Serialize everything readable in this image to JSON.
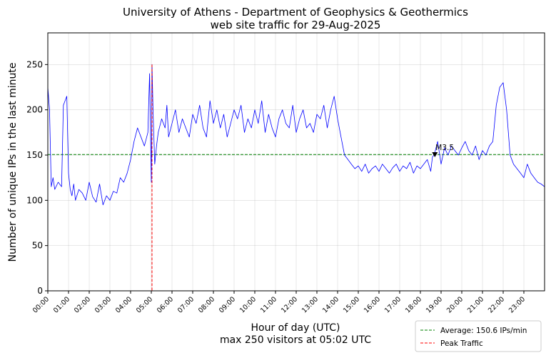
{
  "chart_data": {
    "type": "line",
    "title_line1": "University of Athens - Department of Geophysics & Geothermics",
    "title_line2": "web site traffic for 29-Aug-2025",
    "xlabel": "Hour of day (UTC)",
    "xlabel_sub": "max 250 visitors at 05:02 UTC",
    "ylabel": "Number of unique IPs in the last minute",
    "xlim": [
      0,
      1440
    ],
    "ylim": [
      0,
      285
    ],
    "yticks": [
      0,
      50,
      100,
      150,
      200,
      250
    ],
    "xticks": [
      "00:00",
      "01:00",
      "02:00",
      "03:00",
      "04:00",
      "05:00",
      "06:00",
      "07:00",
      "08:00",
      "09:00",
      "10:00",
      "11:00",
      "12:00",
      "13:00",
      "14:00",
      "15:00",
      "16:00",
      "17:00",
      "18:00",
      "19:00",
      "20:00",
      "21:00",
      "22:00",
      "23:00"
    ],
    "grid": true,
    "legend_position": "lower-right",
    "series": [
      {
        "role": "traffic",
        "color": "#0000ff",
        "x_minutes": [
          0,
          5,
          10,
          15,
          20,
          30,
          40,
          45,
          50,
          55,
          60,
          65,
          70,
          75,
          80,
          90,
          100,
          110,
          120,
          130,
          140,
          150,
          160,
          170,
          180,
          190,
          200,
          210,
          220,
          230,
          240,
          250,
          260,
          270,
          280,
          290,
          295,
          300,
          302,
          305,
          310,
          315,
          320,
          330,
          340,
          345,
          350,
          360,
          370,
          380,
          390,
          400,
          410,
          420,
          430,
          440,
          450,
          460,
          470,
          480,
          490,
          500,
          510,
          520,
          530,
          540,
          550,
          560,
          570,
          580,
          590,
          600,
          610,
          620,
          630,
          640,
          650,
          660,
          670,
          680,
          690,
          700,
          710,
          720,
          730,
          740,
          750,
          760,
          770,
          780,
          790,
          800,
          810,
          820,
          830,
          840,
          850,
          860,
          870,
          880,
          890,
          900,
          910,
          920,
          930,
          940,
          950,
          960,
          970,
          980,
          990,
          1000,
          1010,
          1020,
          1030,
          1040,
          1050,
          1060,
          1070,
          1080,
          1090,
          1100,
          1110,
          1115,
          1120,
          1130,
          1140,
          1150,
          1160,
          1170,
          1180,
          1190,
          1200,
          1210,
          1220,
          1230,
          1240,
          1250,
          1260,
          1270,
          1280,
          1290,
          1300,
          1310,
          1320,
          1330,
          1340,
          1350,
          1360,
          1370,
          1380,
          1390,
          1400,
          1410,
          1420,
          1430,
          1440
        ],
        "y": [
          225,
          200,
          115,
          125,
          112,
          120,
          115,
          205,
          210,
          215,
          130,
          112,
          105,
          118,
          100,
          112,
          108,
          100,
          120,
          104,
          98,
          118,
          95,
          105,
          100,
          110,
          108,
          125,
          120,
          130,
          145,
          165,
          180,
          170,
          160,
          175,
          240,
          120,
          250,
          200,
          140,
          160,
          175,
          190,
          180,
          205,
          170,
          185,
          200,
          175,
          190,
          180,
          170,
          195,
          185,
          205,
          180,
          170,
          210,
          185,
          200,
          180,
          195,
          170,
          185,
          200,
          190,
          205,
          175,
          190,
          180,
          200,
          185,
          210,
          175,
          195,
          180,
          170,
          190,
          200,
          185,
          180,
          205,
          175,
          190,
          200,
          180,
          185,
          175,
          195,
          190,
          205,
          180,
          200,
          215,
          190,
          170,
          150,
          145,
          140,
          135,
          138,
          132,
          140,
          130,
          135,
          138,
          132,
          140,
          135,
          130,
          136,
          140,
          132,
          138,
          135,
          142,
          130,
          138,
          135,
          140,
          145,
          132,
          148,
          150,
          165,
          140,
          158,
          150,
          160,
          155,
          150,
          158,
          165,
          155,
          150,
          160,
          145,
          155,
          150,
          160,
          165,
          205,
          225,
          230,
          200,
          150,
          140,
          135,
          130,
          125,
          140,
          130,
          125,
          120,
          118,
          115
        ]
      }
    ],
    "average": {
      "value": 150.6,
      "label": "Average: 150.6 IPs/min",
      "color": "#008000"
    },
    "peak": {
      "x_minutes": 302,
      "label": "Peak Traffic",
      "color": "#ff0000"
    },
    "annotation": {
      "text": "M3.5",
      "x_minutes": 1122,
      "y": 150
    }
  }
}
